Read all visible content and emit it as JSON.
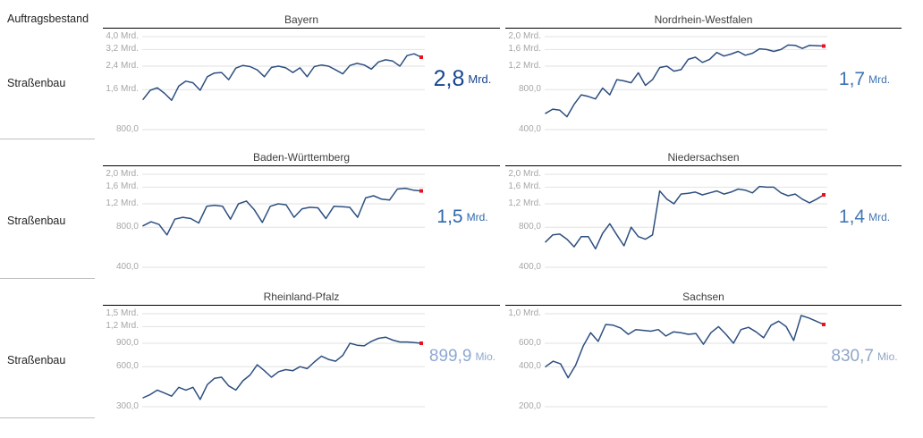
{
  "sidebar": {
    "header": "Auftragsbestand",
    "rows": [
      {
        "label": "Straßenbau"
      },
      {
        "label": "Straßenbau"
      },
      {
        "label": "Straßenbau"
      }
    ]
  },
  "colors": {
    "gridline": "#e2e2e2",
    "axis_label": "#a6a6a6",
    "title_text": "#404040",
    "title_underline": "#000000",
    "sidebar_text": "#252423",
    "separator": "#bdbdbd",
    "line": "#2d4f80",
    "endpoint_marker": "#e81123"
  },
  "chart_data": [
    {
      "type": "line",
      "title": "Bayern",
      "scale": "log",
      "unit": "Mrd.",
      "line_color": "#2d4f80",
      "endpoint_color": "#e81123",
      "callout": {
        "value": "2,8",
        "unit": "Mrd.",
        "color": "#17458f",
        "size": "large"
      },
      "y_ticks": [
        {
          "v": 4.0,
          "label": "4,0 Mrd."
        },
        {
          "v": 3.2,
          "label": "3,2 Mrd."
        },
        {
          "v": 2.4,
          "label": "2,4 Mrd."
        },
        {
          "v": 1.6,
          "label": "1,6 Mrd."
        },
        {
          "v": 0.8,
          "label": "800,0"
        }
      ],
      "values": [
        1.35,
        1.58,
        1.65,
        1.5,
        1.33,
        1.7,
        1.85,
        1.8,
        1.58,
        2.0,
        2.13,
        2.15,
        1.9,
        2.32,
        2.43,
        2.38,
        2.25,
        2.0,
        2.35,
        2.4,
        2.33,
        2.15,
        2.33,
        2.0,
        2.38,
        2.45,
        2.4,
        2.25,
        2.1,
        2.43,
        2.52,
        2.45,
        2.28,
        2.58,
        2.68,
        2.62,
        2.4,
        2.88,
        2.97,
        2.8
      ]
    },
    {
      "type": "line",
      "title": "Nordrhein-Westfalen",
      "scale": "log",
      "unit": "Mrd.",
      "line_color": "#2d4f80",
      "endpoint_color": "#e81123",
      "callout": {
        "value": "1,7",
        "unit": "Mrd.",
        "color": "#3d73b3",
        "size": "medium"
      },
      "y_ticks": [
        {
          "v": 2.0,
          "label": "2,0 Mrd."
        },
        {
          "v": 1.6,
          "label": "1,6 Mrd."
        },
        {
          "v": 1.2,
          "label": "1,2 Mrd."
        },
        {
          "v": 0.8,
          "label": "800,0"
        },
        {
          "v": 0.4,
          "label": "400,0"
        }
      ],
      "values": [
        0.53,
        0.57,
        0.56,
        0.5,
        0.62,
        0.73,
        0.71,
        0.68,
        0.82,
        0.73,
        0.95,
        0.93,
        0.9,
        1.07,
        0.86,
        0.95,
        1.17,
        1.2,
        1.1,
        1.13,
        1.35,
        1.4,
        1.28,
        1.35,
        1.52,
        1.43,
        1.48,
        1.55,
        1.45,
        1.5,
        1.62,
        1.6,
        1.55,
        1.6,
        1.73,
        1.72,
        1.63,
        1.72,
        1.71,
        1.7
      ]
    },
    {
      "type": "line",
      "title": "Baden-Württemberg",
      "scale": "log",
      "unit": "Mrd.",
      "line_color": "#2d4f80",
      "endpoint_color": "#e81123",
      "callout": {
        "value": "1,5",
        "unit": "Mrd.",
        "color": "#2d68ad",
        "size": "medium"
      },
      "y_ticks": [
        {
          "v": 2.0,
          "label": "2,0 Mrd."
        },
        {
          "v": 1.6,
          "label": "1,6 Mrd."
        },
        {
          "v": 1.2,
          "label": "1,2 Mrd."
        },
        {
          "v": 0.8,
          "label": "800,0"
        },
        {
          "v": 0.4,
          "label": "400,0"
        }
      ],
      "values": [
        0.82,
        0.88,
        0.84,
        0.7,
        0.92,
        0.95,
        0.93,
        0.86,
        1.15,
        1.17,
        1.15,
        0.92,
        1.2,
        1.26,
        1.08,
        0.87,
        1.15,
        1.2,
        1.18,
        0.95,
        1.1,
        1.13,
        1.12,
        0.93,
        1.15,
        1.14,
        1.13,
        0.95,
        1.33,
        1.38,
        1.3,
        1.28,
        1.55,
        1.57,
        1.52,
        1.5
      ]
    },
    {
      "type": "line",
      "title": "Niedersachsen",
      "scale": "log",
      "unit": "Mrd.",
      "line_color": "#2d4f80",
      "endpoint_color": "#e81123",
      "callout": {
        "value": "1,4",
        "unit": "Mrd.",
        "color": "#4678b4",
        "size": "medium"
      },
      "y_ticks": [
        {
          "v": 2.0,
          "label": "2,0 Mrd."
        },
        {
          "v": 1.6,
          "label": "1,6 Mrd."
        },
        {
          "v": 1.2,
          "label": "1,2 Mrd."
        },
        {
          "v": 0.8,
          "label": "800,0"
        },
        {
          "v": 0.4,
          "label": "400,0"
        }
      ],
      "values": [
        0.62,
        0.7,
        0.71,
        0.65,
        0.57,
        0.68,
        0.68,
        0.55,
        0.72,
        0.85,
        0.7,
        0.58,
        0.8,
        0.68,
        0.65,
        0.7,
        1.5,
        1.3,
        1.2,
        1.42,
        1.44,
        1.47,
        1.4,
        1.45,
        1.5,
        1.42,
        1.47,
        1.55,
        1.52,
        1.45,
        1.62,
        1.6,
        1.6,
        1.45,
        1.38,
        1.42,
        1.3,
        1.22,
        1.3,
        1.4
      ]
    },
    {
      "type": "line",
      "title": "Rheinland-Pfalz",
      "scale": "log",
      "unit": "Mio.",
      "line_color": "#2d4f80",
      "endpoint_color": "#e81123",
      "callout": {
        "value": "899,9",
        "unit": "Mio.",
        "color": "#8ea9d2",
        "size": "small"
      },
      "y_ticks": [
        {
          "v": 1.5,
          "label": "1,5 Mrd."
        },
        {
          "v": 1.2,
          "label": "1,2 Mrd."
        },
        {
          "v": 0.9,
          "label": "900,0"
        },
        {
          "v": 0.6,
          "label": "600,0"
        },
        {
          "v": 0.3,
          "label": "300,0"
        }
      ],
      "values": [
        0.35,
        0.37,
        0.4,
        0.38,
        0.36,
        0.42,
        0.4,
        0.42,
        0.34,
        0.44,
        0.49,
        0.5,
        0.43,
        0.4,
        0.47,
        0.52,
        0.62,
        0.56,
        0.5,
        0.55,
        0.57,
        0.56,
        0.6,
        0.58,
        0.65,
        0.72,
        0.68,
        0.66,
        0.73,
        0.9,
        0.87,
        0.86,
        0.93,
        0.98,
        1.0,
        0.95,
        0.92,
        0.92,
        0.91,
        0.9
      ]
    },
    {
      "type": "line",
      "title": "Sachsen",
      "scale": "log",
      "unit": "Mio.",
      "line_color": "#2d4f80",
      "endpoint_color": "#e81123",
      "callout": {
        "value": "830,7",
        "unit": "Mio.",
        "color": "#90a6c6",
        "size": "small"
      },
      "y_ticks": [
        {
          "v": 1.0,
          "label": "1,0 Mrd."
        },
        {
          "v": 0.6,
          "label": "600,0"
        },
        {
          "v": 0.4,
          "label": "400,0"
        },
        {
          "v": 0.2,
          "label": "200,0"
        }
      ],
      "values": [
        0.4,
        0.44,
        0.42,
        0.33,
        0.41,
        0.57,
        0.72,
        0.62,
        0.83,
        0.82,
        0.78,
        0.7,
        0.76,
        0.75,
        0.74,
        0.76,
        0.68,
        0.73,
        0.72,
        0.7,
        0.71,
        0.59,
        0.72,
        0.8,
        0.7,
        0.6,
        0.76,
        0.79,
        0.73,
        0.66,
        0.82,
        0.88,
        0.8,
        0.63,
        0.97,
        0.93,
        0.88,
        0.83
      ]
    }
  ]
}
